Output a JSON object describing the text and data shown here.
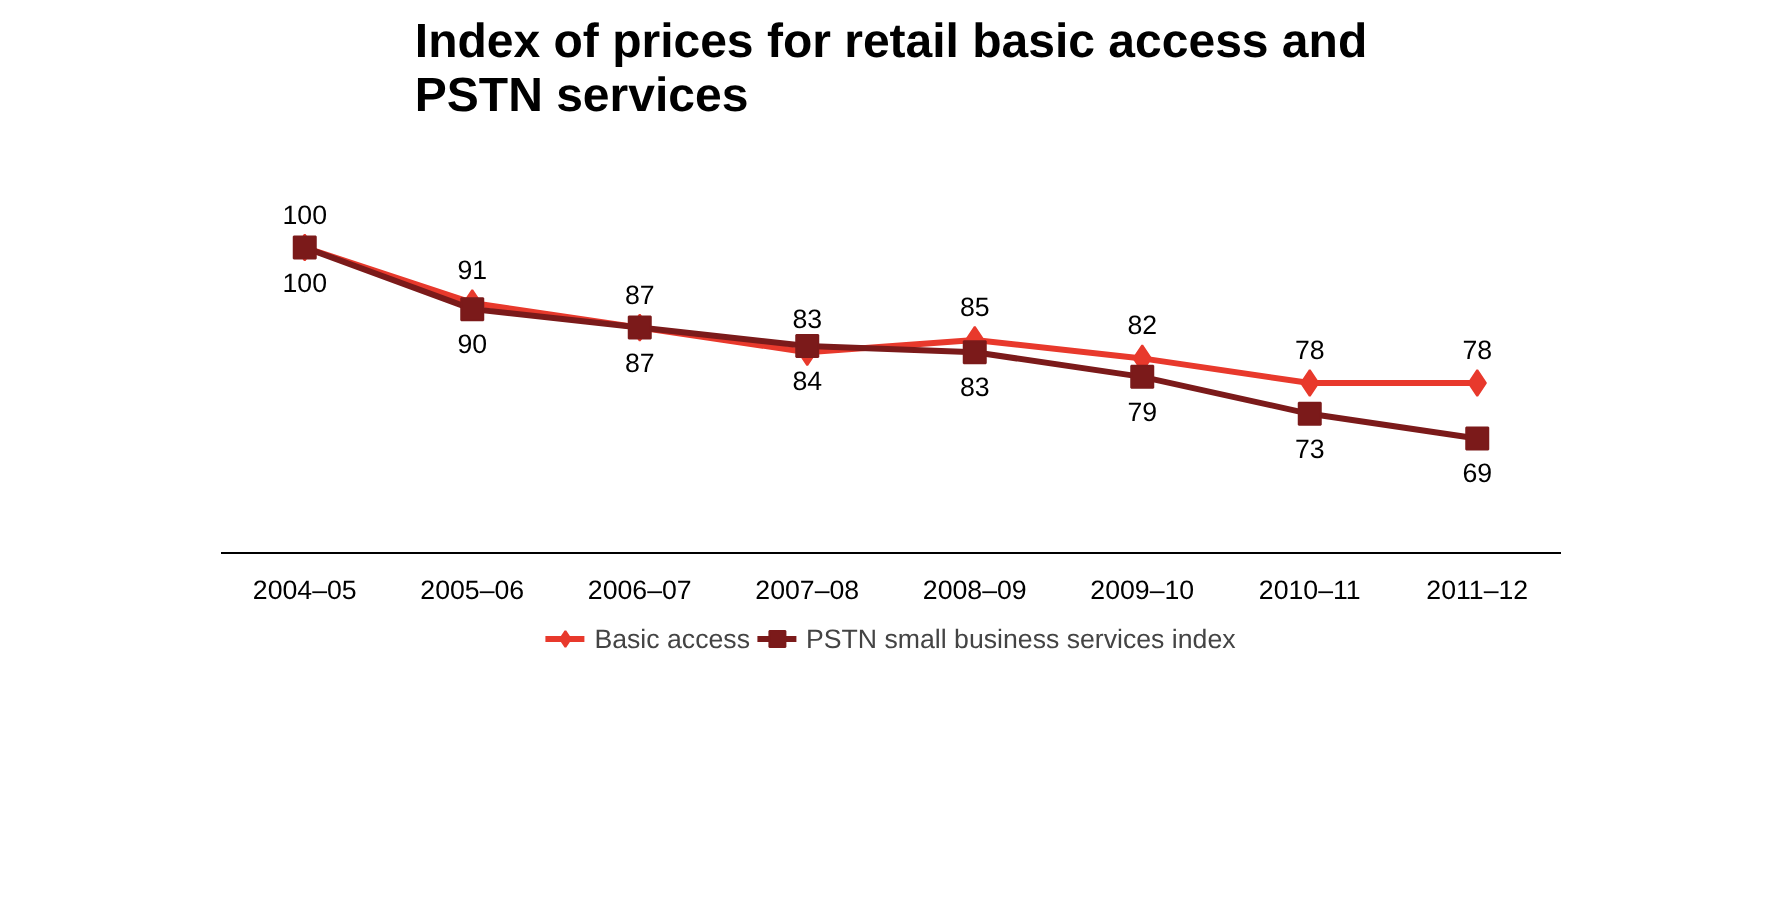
{
  "chart_data": {
    "type": "line",
    "title": "Index of prices for retail basic access and\nPSTN services",
    "categories": [
      "2004–05",
      "2005–06",
      "2006–07",
      "2007–08",
      "2008–09",
      "2009–10",
      "2010–11",
      "2011–12"
    ],
    "tick_labels": "x",
    "grid": false,
    "legend": "bottom",
    "data_labels": true,
    "series": [
      {
        "name": "Basic access",
        "color": "#e8392c",
        "marker": "diamond",
        "values": [
          100,
          91,
          87,
          83,
          85,
          82,
          78,
          78
        ]
      },
      {
        "name": "PSTN small business services index",
        "color": "#7b1a1a",
        "marker": "square",
        "values": [
          100,
          90,
          87,
          84,
          83,
          79,
          73,
          69
        ]
      }
    ]
  }
}
